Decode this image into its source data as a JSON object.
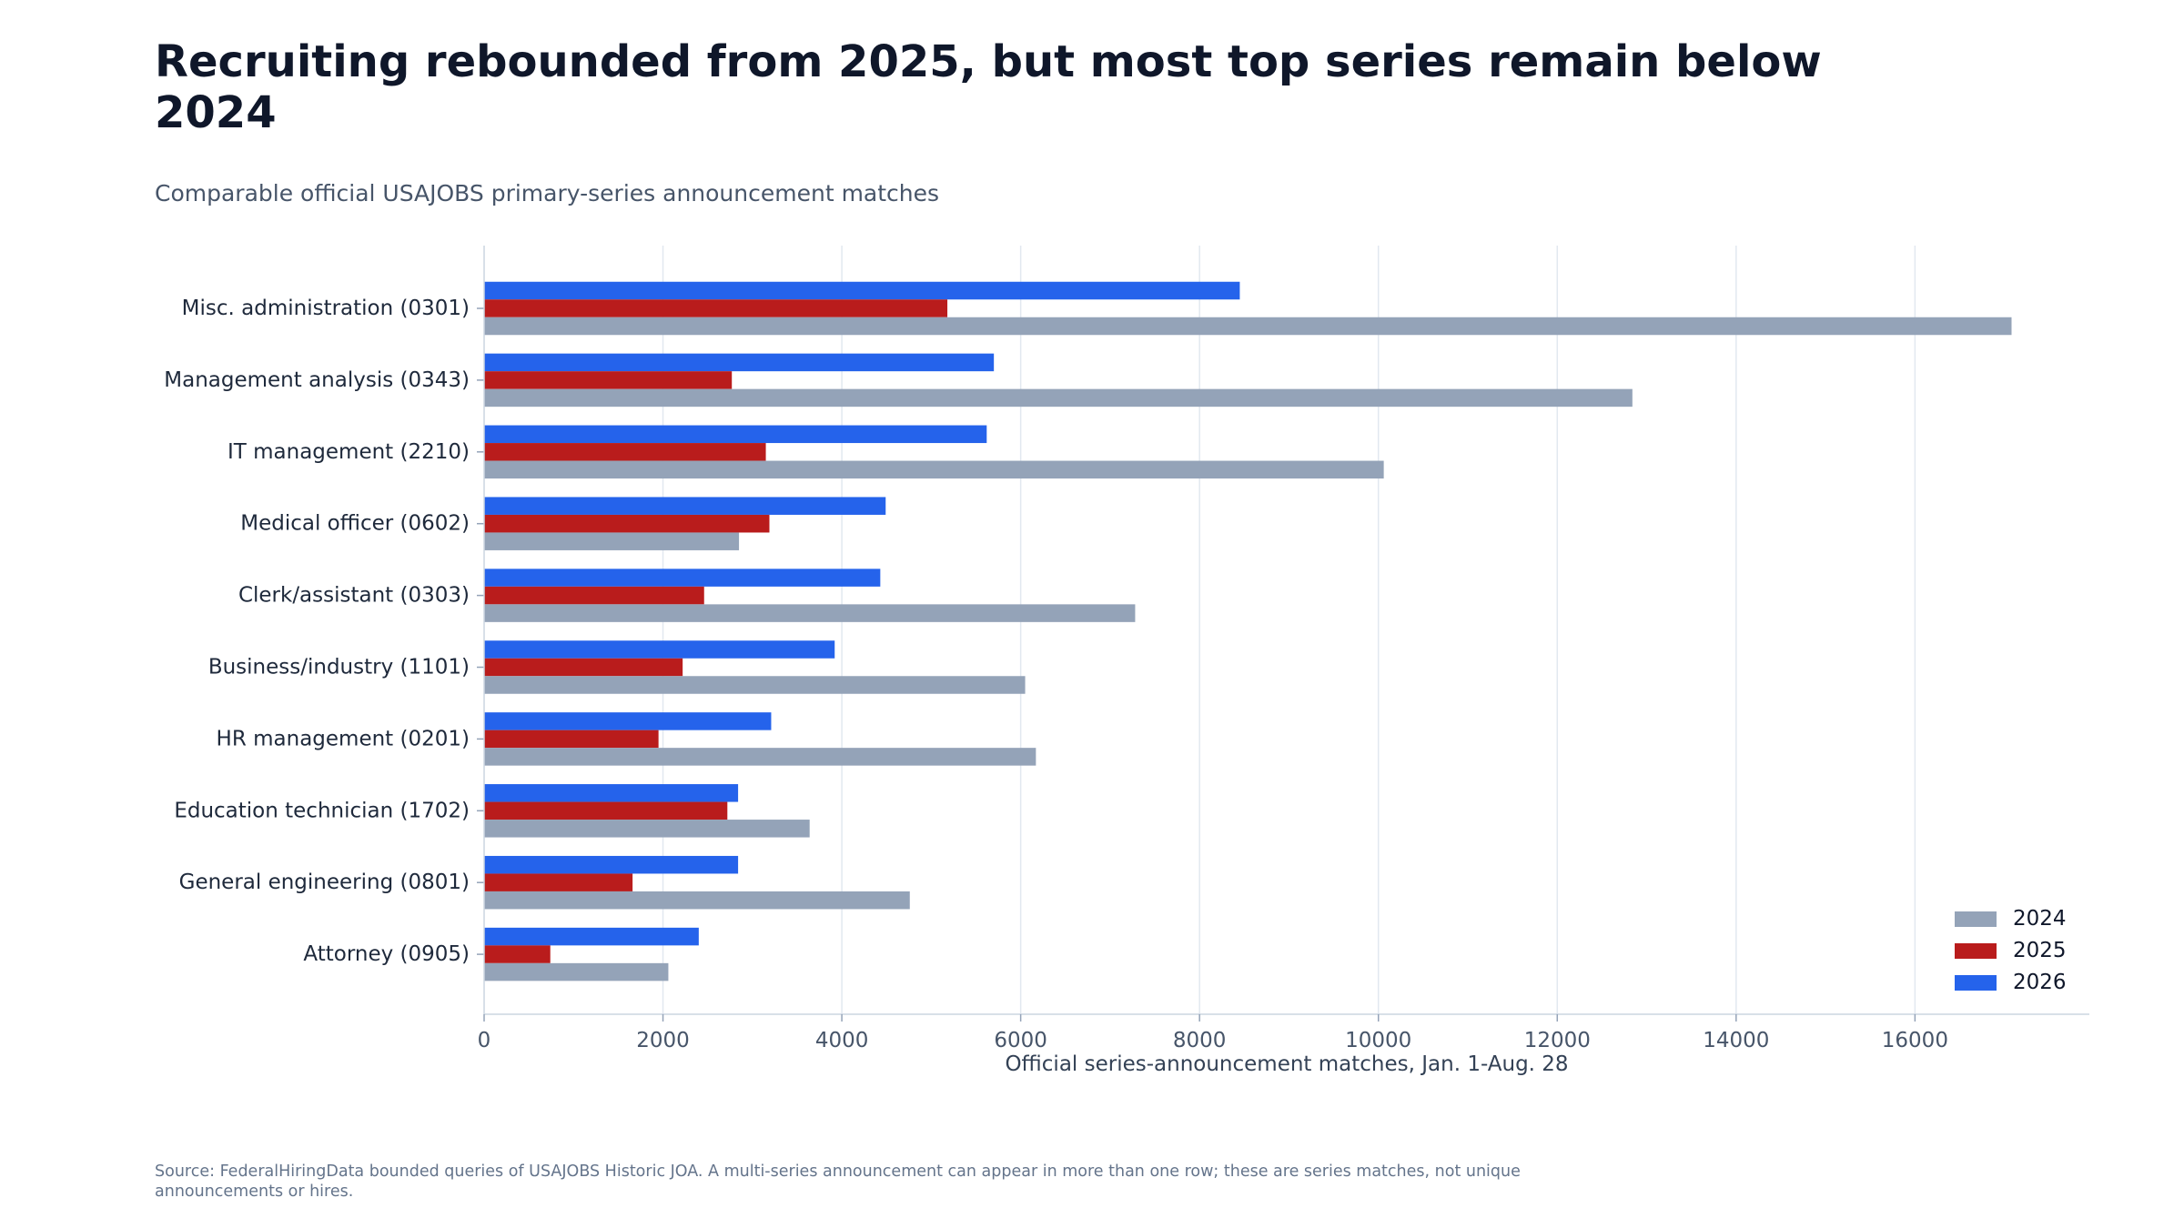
{
  "title": "Recruiting rebounded from 2025, but most top series remain below 2024",
  "subtitle": "Comparable official USAJOBS primary-series announcement matches",
  "source": "Source: FederalHiringData bounded queries of USAJOBS Historic JOA. A multi-series announcement can appear in more than one row; these are series matches, not unique announcements or hires.",
  "chart_data": {
    "type": "bar",
    "orientation": "horizontal",
    "categories": [
      "Misc. administration (0301)",
      "Management analysis (0343)",
      "IT management (2210)",
      "Medical officer (0602)",
      "Clerk/assistant (0303)",
      "Business/industry (1101)",
      "HR management (0201)",
      "Education technician (1702)",
      "General engineering (0801)",
      "Attorney (0905)"
    ],
    "series": [
      {
        "name": "2024",
        "color": "#94a3b8",
        "values": [
          17080,
          12840,
          10060,
          2850,
          7280,
          6050,
          6170,
          3640,
          4760,
          2060
        ]
      },
      {
        "name": "2025",
        "color": "#b91c1c",
        "values": [
          5180,
          2770,
          3150,
          3190,
          2460,
          2220,
          1950,
          2720,
          1660,
          740
        ]
      },
      {
        "name": "2026",
        "color": "#2563eb",
        "values": [
          8450,
          5700,
          5620,
          4490,
          4430,
          3920,
          3210,
          2840,
          2840,
          2400
        ]
      }
    ],
    "xlabel": "Official series-announcement matches, Jan. 1-Aug. 28",
    "ylabel": "",
    "xlim": [
      0,
      17950
    ],
    "xticks": [
      0,
      2000,
      4000,
      6000,
      8000,
      10000,
      12000,
      14000,
      16000
    ],
    "grid": "vertical",
    "legend_position": "bottom-right",
    "legend_order": [
      "2024",
      "2025",
      "2026"
    ]
  }
}
